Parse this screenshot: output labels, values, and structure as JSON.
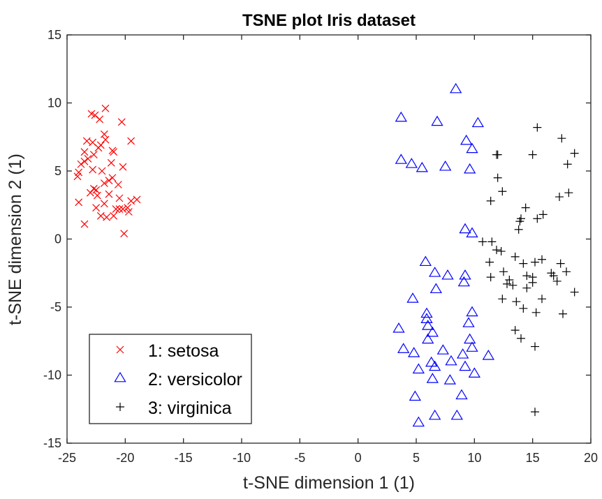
{
  "chart_data": {
    "type": "scatter",
    "title": "TSNE plot Iris dataset",
    "xlabel": "t-SNE dimension 1 (1)",
    "ylabel": "t-SNE dimension 2 (1)",
    "xlim": [
      -25,
      20
    ],
    "ylim": [
      -15,
      15
    ],
    "xticks": [
      -25,
      -20,
      -15,
      -10,
      -5,
      0,
      5,
      10,
      15,
      20
    ],
    "yticks": [
      -15,
      -10,
      -5,
      0,
      5,
      10,
      15
    ],
    "grid": false,
    "legend_position": "bottom-left",
    "series": [
      {
        "name": "1: setosa",
        "marker": "x",
        "color": "#ff0000",
        "points": [
          [
            -22.9,
            9.2
          ],
          [
            -22.6,
            9.1
          ],
          [
            -21.7,
            9.6
          ],
          [
            -22.2,
            8.8
          ],
          [
            -20.3,
            8.6
          ],
          [
            -23.3,
            7.2
          ],
          [
            -22.8,
            7.1
          ],
          [
            -21.8,
            7.7
          ],
          [
            -22.1,
            6.9
          ],
          [
            -22.3,
            6.7
          ],
          [
            -19.5,
            7.2
          ],
          [
            -21.7,
            7.3
          ],
          [
            -23.5,
            6.4
          ],
          [
            -23.2,
            5.9
          ],
          [
            -22.7,
            6.2
          ],
          [
            -21.1,
            6.5
          ],
          [
            -21.0,
            6.4
          ],
          [
            -23.8,
            5.5
          ],
          [
            -23.5,
            5.7
          ],
          [
            -24.0,
            4.9
          ],
          [
            -24.1,
            4.6
          ],
          [
            -22.8,
            5.1
          ],
          [
            -22.0,
            5.0
          ],
          [
            -21.2,
            5.6
          ],
          [
            -20.2,
            5.3
          ],
          [
            -21.1,
            4.5
          ],
          [
            -21.4,
            4.3
          ],
          [
            -21.8,
            4.1
          ],
          [
            -20.6,
            4.0
          ],
          [
            -22.7,
            3.7
          ],
          [
            -22.5,
            3.6
          ],
          [
            -22.4,
            3.2
          ],
          [
            -21.4,
            3.3
          ],
          [
            -20.5,
            3.0
          ],
          [
            -23.0,
            3.4
          ],
          [
            -19.5,
            2.8
          ],
          [
            -19.0,
            2.9
          ],
          [
            -24.0,
            2.7
          ],
          [
            -22.5,
            2.3
          ],
          [
            -21.8,
            2.6
          ],
          [
            -20.8,
            2.2
          ],
          [
            -20.2,
            2.2
          ],
          [
            -20.5,
            2.2
          ],
          [
            -19.7,
            2.0
          ],
          [
            -19.8,
            2.3
          ],
          [
            -22.1,
            1.7
          ],
          [
            -21.6,
            1.6
          ],
          [
            -21.0,
            1.7
          ],
          [
            -23.5,
            1.1
          ],
          [
            -20.1,
            0.4
          ]
        ]
      },
      {
        "name": "2: versicolor",
        "marker": "triangle",
        "color": "#0000ff",
        "points": [
          [
            8.4,
            11.0
          ],
          [
            3.7,
            8.9
          ],
          [
            6.8,
            8.6
          ],
          [
            10.3,
            8.5
          ],
          [
            9.3,
            7.2
          ],
          [
            9.8,
            6.6
          ],
          [
            3.7,
            5.8
          ],
          [
            4.6,
            5.5
          ],
          [
            5.5,
            5.2
          ],
          [
            7.5,
            5.3
          ],
          [
            9.6,
            5.1
          ],
          [
            9.2,
            0.7
          ],
          [
            9.8,
            0.4
          ],
          [
            5.8,
            -1.7
          ],
          [
            6.6,
            -2.5
          ],
          [
            7.7,
            -2.7
          ],
          [
            9.2,
            -2.7
          ],
          [
            9.1,
            -3.2
          ],
          [
            6.7,
            -3.7
          ],
          [
            4.7,
            -4.4
          ],
          [
            5.9,
            -5.5
          ],
          [
            9.8,
            -5.4
          ],
          [
            5.9,
            -5.9
          ],
          [
            6.0,
            -6.4
          ],
          [
            9.5,
            -6.2
          ],
          [
            3.5,
            -6.6
          ],
          [
            6.4,
            -6.9
          ],
          [
            6.0,
            -7.4
          ],
          [
            9.6,
            -7.4
          ],
          [
            3.9,
            -8.1
          ],
          [
            9.8,
            -8.0
          ],
          [
            7.3,
            -8.2
          ],
          [
            4.8,
            -8.4
          ],
          [
            9.0,
            -8.5
          ],
          [
            11.2,
            -8.6
          ],
          [
            6.3,
            -9.1
          ],
          [
            8.0,
            -9.0
          ],
          [
            5.2,
            -9.6
          ],
          [
            6.6,
            -9.4
          ],
          [
            9.2,
            -9.4
          ],
          [
            10.0,
            -9.9
          ],
          [
            6.4,
            -10.3
          ],
          [
            7.9,
            -10.4
          ],
          [
            4.9,
            -11.6
          ],
          [
            8.9,
            -11.5
          ],
          [
            6.6,
            -13.0
          ],
          [
            8.5,
            -13.0
          ],
          [
            5.2,
            -13.5
          ]
        ]
      },
      {
        "name": "3: virginica",
        "marker": "plus",
        "color": "#000000",
        "points": [
          [
            15.4,
            8.2
          ],
          [
            17.5,
            7.4
          ],
          [
            18.6,
            6.3
          ],
          [
            11.9,
            6.2
          ],
          [
            15.0,
            6.2
          ],
          [
            12.0,
            6.2
          ],
          [
            18.0,
            5.5
          ],
          [
            12.0,
            4.5
          ],
          [
            12.4,
            3.5
          ],
          [
            17.3,
            3.1
          ],
          [
            18.1,
            3.4
          ],
          [
            11.4,
            2.8
          ],
          [
            14.4,
            2.3
          ],
          [
            15.4,
            1.5
          ],
          [
            15.9,
            1.8
          ],
          [
            13.9,
            1.3
          ],
          [
            14.0,
            1.5
          ],
          [
            13.8,
            0.7
          ],
          [
            10.7,
            -0.2
          ],
          [
            11.5,
            -0.2
          ],
          [
            11.9,
            -0.8
          ],
          [
            12.3,
            -0.9
          ],
          [
            13.5,
            -1.3
          ],
          [
            14.2,
            -1.8
          ],
          [
            15.2,
            -1.7
          ],
          [
            15.8,
            -1.5
          ],
          [
            17.4,
            -1.8
          ],
          [
            11.3,
            -1.7
          ],
          [
            12.5,
            -2.4
          ],
          [
            13.0,
            -3.0
          ],
          [
            14.5,
            -2.7
          ],
          [
            15.0,
            -2.8
          ],
          [
            16.6,
            -2.5
          ],
          [
            16.8,
            -2.7
          ],
          [
            17.9,
            -2.4
          ],
          [
            11.4,
            -2.8
          ],
          [
            12.8,
            -3.3
          ],
          [
            13.3,
            -3.4
          ],
          [
            14.5,
            -3.6
          ],
          [
            15.0,
            -3.2
          ],
          [
            17.1,
            -3.1
          ],
          [
            12.4,
            -4.4
          ],
          [
            13.6,
            -4.6
          ],
          [
            15.8,
            -4.4
          ],
          [
            18.6,
            -3.9
          ],
          [
            14.2,
            -5.1
          ],
          [
            15.3,
            -5.4
          ],
          [
            17.6,
            -5.5
          ],
          [
            13.5,
            -6.7
          ],
          [
            14.0,
            -7.3
          ],
          [
            15.2,
            -7.9
          ],
          [
            15.2,
            -12.7
          ]
        ]
      }
    ]
  }
}
